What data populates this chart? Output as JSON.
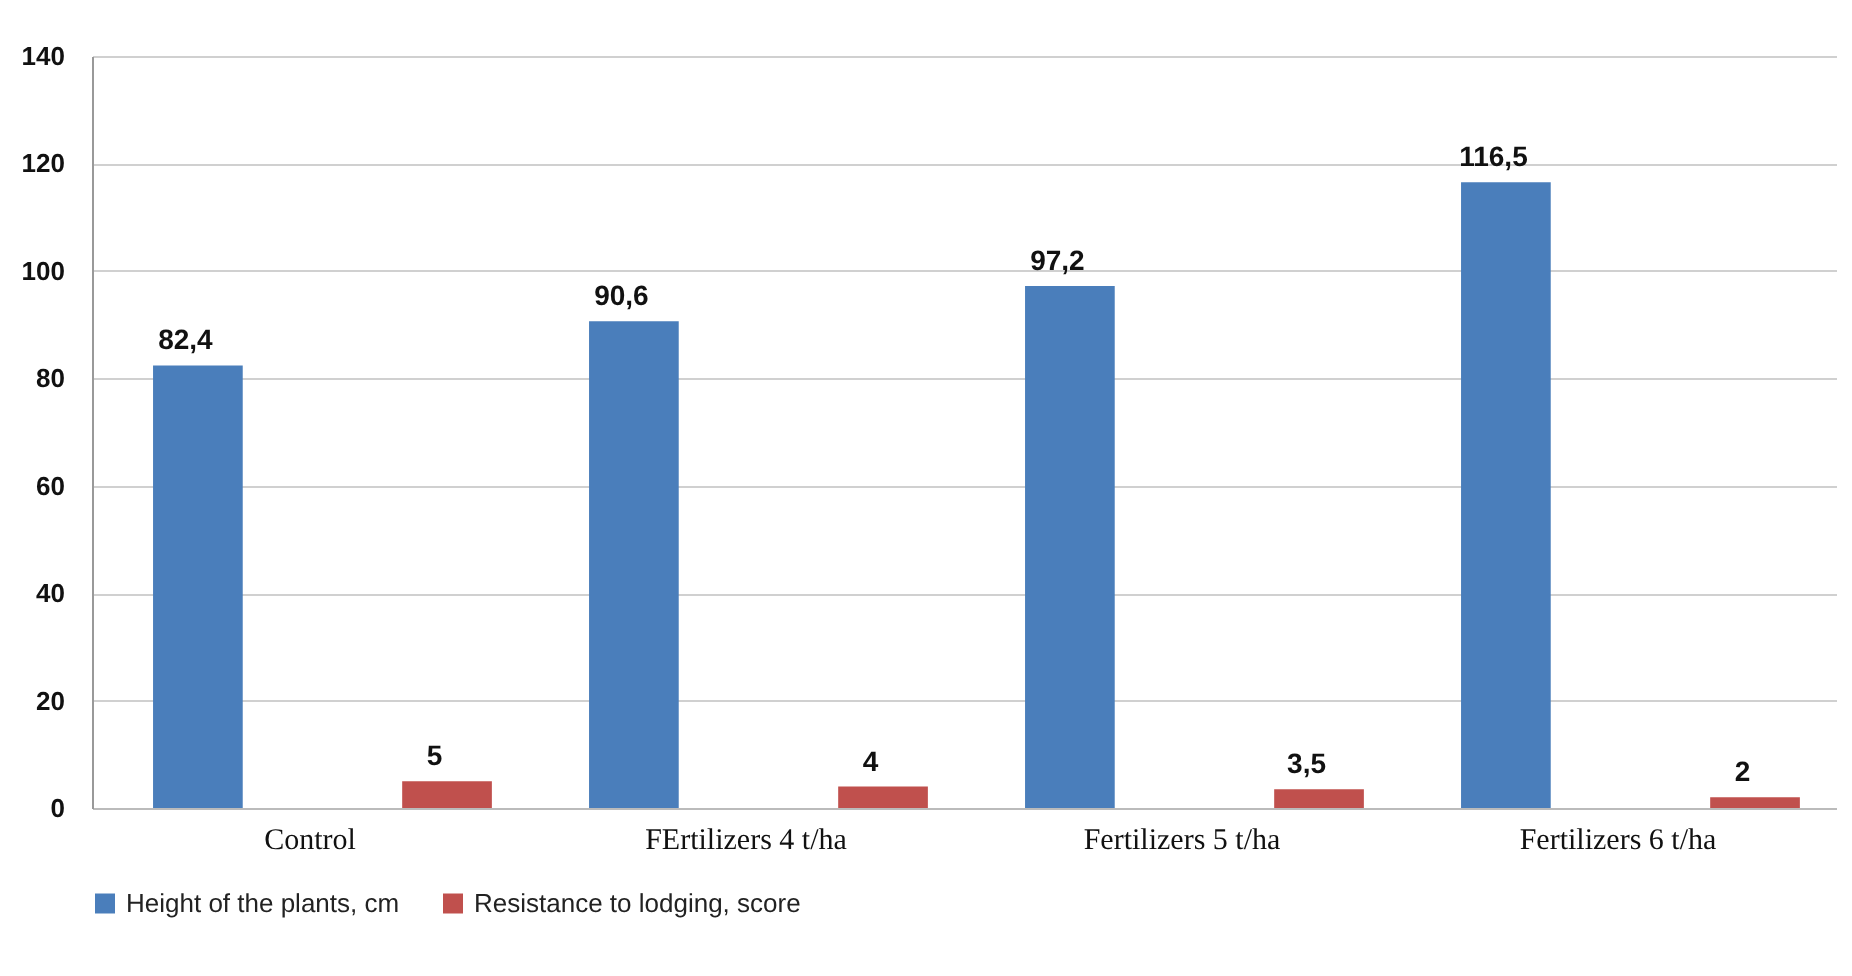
{
  "chart_data": {
    "type": "bar",
    "categories": [
      "Control",
      "FErtilizers 4 t/ha",
      "Fertilizers 5 t/ha",
      "Fertilizers 6 t/ha"
    ],
    "series": [
      {
        "name": "Height of the plants, cm",
        "color": "#4a7ebb",
        "values": [
          82.4,
          90.6,
          97.2,
          116.5
        ],
        "value_labels": [
          "82,4",
          "90,6",
          "97,2",
          "116,5"
        ]
      },
      {
        "name": "Resistance to lodging, score",
        "color": "#c0504d",
        "values": [
          5,
          4,
          3.5,
          2
        ],
        "value_labels": [
          "5",
          "4",
          "3,5",
          "2"
        ]
      }
    ],
    "ylim": [
      0,
      140
    ],
    "yticks": [
      0,
      20,
      40,
      60,
      80,
      100,
      120,
      140
    ],
    "grid": "y",
    "legend": "bottom"
  }
}
